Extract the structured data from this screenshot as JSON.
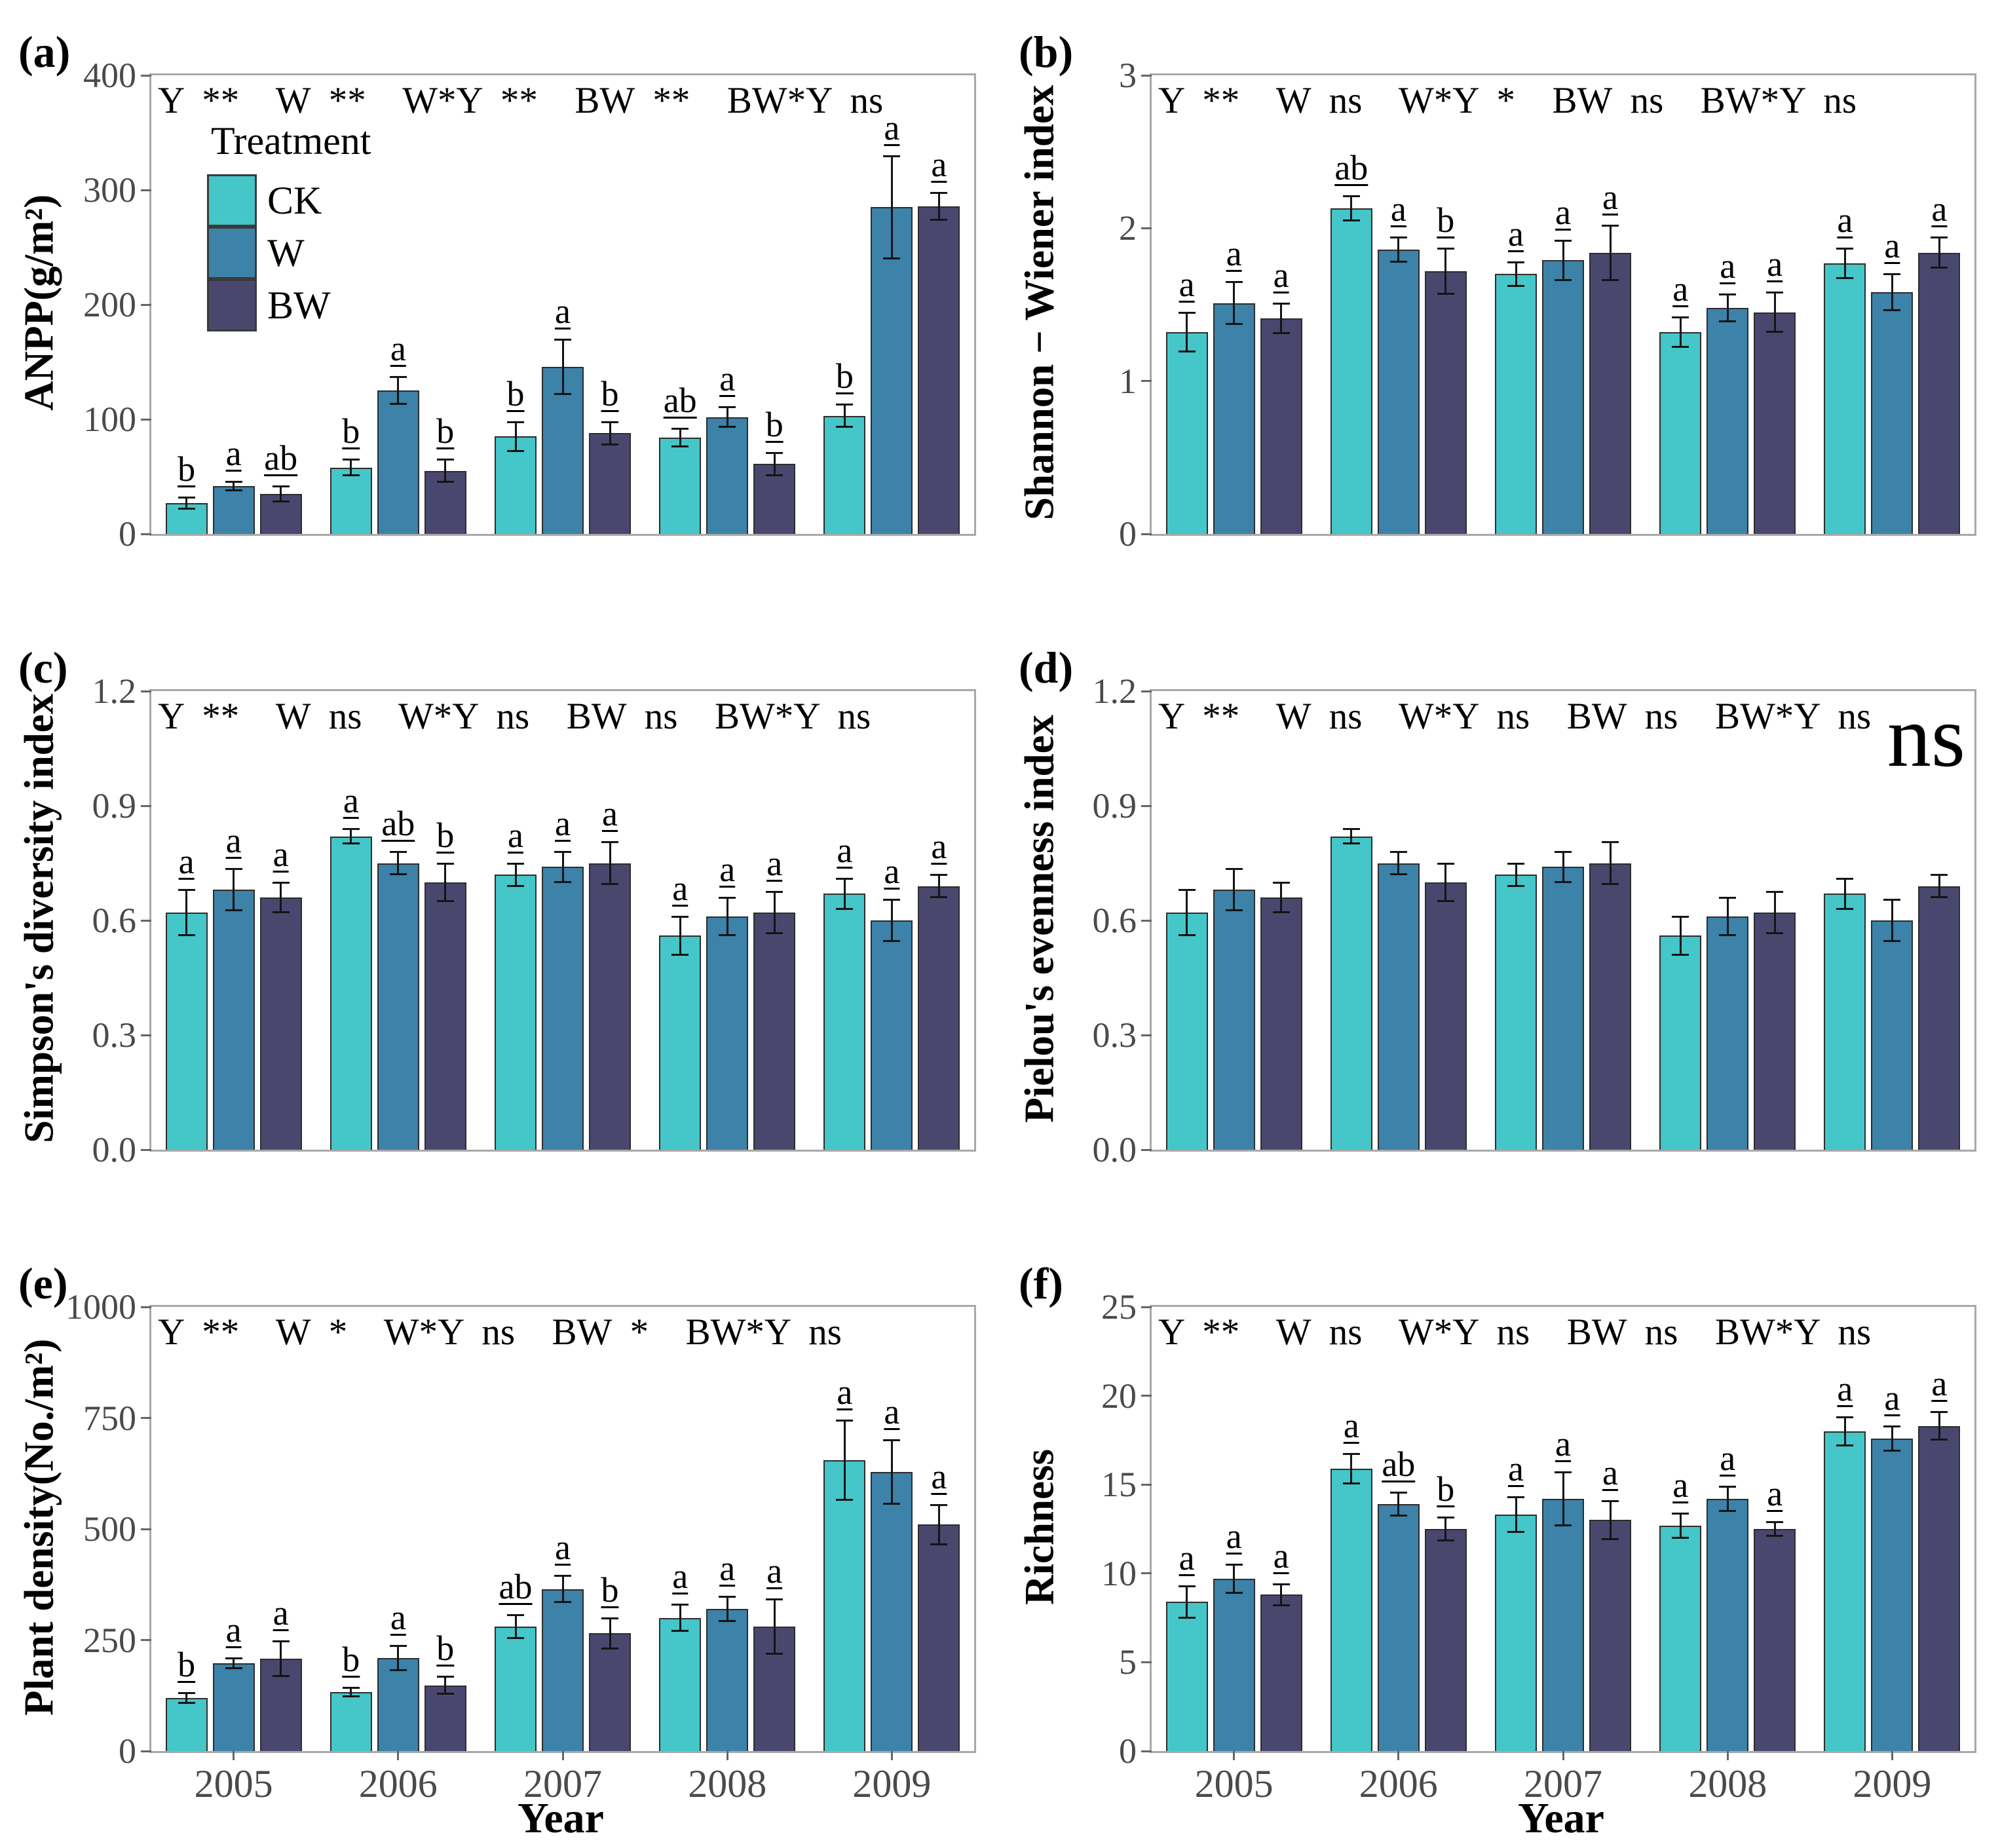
{
  "chart_data": [
    {
      "panel_label": "(a)",
      "type": "bar",
      "ylabel": "ANPP(g/m²)",
      "stats_text": "Y **  W **  W*Y **  BW **  BW*Y ns",
      "categories": [
        "2005",
        "2006",
        "2007",
        "2008",
        "2009"
      ],
      "xlabel": "",
      "show_x_labels": false,
      "ylim": [
        0,
        400
      ],
      "yticks": [
        0,
        100,
        200,
        300,
        400
      ],
      "ytick_labels": [
        "0",
        "100",
        "200",
        "300",
        "400"
      ],
      "series": [
        {
          "name": "CK",
          "color": "#45C6C8",
          "values": [
            27,
            58,
            85,
            84,
            103
          ],
          "errors": [
            5,
            7,
            13,
            8,
            10
          ],
          "letters": [
            "b",
            "b",
            "b",
            "ab",
            "b"
          ]
        },
        {
          "name": "W",
          "color": "#3C82A9",
          "values": [
            42,
            125,
            146,
            102,
            285
          ],
          "errors": [
            4,
            12,
            24,
            9,
            45
          ],
          "letters": [
            "a",
            "a",
            "a",
            "a",
            "a"
          ]
        },
        {
          "name": "BW",
          "color": "#4A476F",
          "values": [
            35,
            55,
            88,
            61,
            286
          ],
          "errors": [
            7,
            10,
            10,
            10,
            12
          ],
          "letters": [
            "ab",
            "b",
            "b",
            "b",
            "a"
          ]
        }
      ],
      "legend": {
        "title": "Treatment"
      },
      "annotation": ""
    },
    {
      "panel_label": "(b)",
      "type": "bar",
      "ylabel": "Shannon − Wiener index",
      "stats_text": "Y **  W ns  W*Y *  BW ns  BW*Y ns",
      "categories": [
        "2005",
        "2006",
        "2007",
        "2008",
        "2009"
      ],
      "xlabel": "",
      "show_x_labels": false,
      "ylim": [
        0,
        3
      ],
      "yticks": [
        0,
        1,
        2,
        3
      ],
      "ytick_labels": [
        "0",
        "1",
        "2",
        "3"
      ],
      "series": [
        {
          "name": "CK",
          "color": "#45C6C8",
          "values": [
            1.32,
            2.13,
            1.7,
            1.32,
            1.77
          ],
          "errors": [
            0.13,
            0.08,
            0.08,
            0.1,
            0.1
          ],
          "letters": [
            "a",
            "ab",
            "a",
            "a",
            "a"
          ]
        },
        {
          "name": "W",
          "color": "#3C82A9",
          "values": [
            1.51,
            1.86,
            1.79,
            1.48,
            1.58
          ],
          "errors": [
            0.14,
            0.08,
            0.13,
            0.09,
            0.12
          ],
          "letters": [
            "a",
            "a",
            "a",
            "a",
            "a"
          ]
        },
        {
          "name": "BW",
          "color": "#4A476F",
          "values": [
            1.41,
            1.72,
            1.84,
            1.45,
            1.84
          ],
          "errors": [
            0.1,
            0.15,
            0.18,
            0.13,
            0.1
          ],
          "letters": [
            "a",
            "b",
            "a",
            "a",
            "a"
          ]
        }
      ],
      "legend": null,
      "annotation": ""
    },
    {
      "panel_label": "(c)",
      "type": "bar",
      "ylabel": "Simpson's diversity index",
      "stats_text": "Y **  W ns  W*Y ns  BW ns  BW*Y ns",
      "categories": [
        "2005",
        "2006",
        "2007",
        "2008",
        "2009"
      ],
      "xlabel": "",
      "show_x_labels": false,
      "ylim": [
        0,
        1.2
      ],
      "yticks": [
        0,
        0.3,
        0.6,
        0.9,
        1.2
      ],
      "ytick_labels": [
        "0.0",
        "0.3",
        "0.6",
        "0.9",
        "1.2"
      ],
      "series": [
        {
          "name": "CK",
          "color": "#45C6C8",
          "values": [
            0.62,
            0.82,
            0.72,
            0.56,
            0.67
          ],
          "errors": [
            0.06,
            0.02,
            0.03,
            0.05,
            0.04
          ],
          "letters": [
            "a",
            "a",
            "a",
            "a",
            "a"
          ]
        },
        {
          "name": "W",
          "color": "#3C82A9",
          "values": [
            0.68,
            0.75,
            0.74,
            0.61,
            0.6
          ],
          "errors": [
            0.055,
            0.03,
            0.04,
            0.05,
            0.055
          ],
          "letters": [
            "a",
            "ab",
            "a",
            "a",
            "a"
          ]
        },
        {
          "name": "BW",
          "color": "#4A476F",
          "values": [
            0.66,
            0.7,
            0.75,
            0.62,
            0.69
          ],
          "errors": [
            0.04,
            0.05,
            0.055,
            0.055,
            0.03
          ],
          "letters": [
            "a",
            "b",
            "a",
            "a",
            "a"
          ]
        }
      ],
      "legend": null,
      "annotation": ""
    },
    {
      "panel_label": "(d)",
      "type": "bar",
      "ylabel": "Pielou's evenness index",
      "stats_text": "Y **  W ns  W*Y ns  BW ns  BW*Y ns",
      "categories": [
        "2005",
        "2006",
        "2007",
        "2008",
        "2009"
      ],
      "xlabel": "",
      "show_x_labels": false,
      "ylim": [
        0,
        1.2
      ],
      "yticks": [
        0,
        0.3,
        0.6,
        0.9,
        1.2
      ],
      "ytick_labels": [
        "0.0",
        "0.3",
        "0.6",
        "0.9",
        "1.2"
      ],
      "series": [
        {
          "name": "CK",
          "color": "#45C6C8",
          "values": [
            0.62,
            0.82,
            0.72,
            0.56,
            0.67
          ],
          "errors": [
            0.06,
            0.02,
            0.03,
            0.05,
            0.04
          ],
          "letters": null
        },
        {
          "name": "W",
          "color": "#3C82A9",
          "values": [
            0.68,
            0.75,
            0.74,
            0.61,
            0.6
          ],
          "errors": [
            0.055,
            0.03,
            0.04,
            0.05,
            0.055
          ],
          "letters": null
        },
        {
          "name": "BW",
          "color": "#4A476F",
          "values": [
            0.66,
            0.7,
            0.75,
            0.62,
            0.69
          ],
          "errors": [
            0.04,
            0.05,
            0.055,
            0.055,
            0.03
          ],
          "letters": null
        }
      ],
      "legend": null,
      "annotation": "ns"
    },
    {
      "panel_label": "(e)",
      "type": "bar",
      "ylabel": "Plant density(No./m²)",
      "stats_text": "Y **  W *  W*Y ns  BW *  BW*Y ns",
      "categories": [
        "2005",
        "2006",
        "2007",
        "2008",
        "2009"
      ],
      "xlabel": "Year",
      "show_x_labels": true,
      "ylim": [
        0,
        1000
      ],
      "yticks": [
        0,
        250,
        500,
        750,
        1000
      ],
      "ytick_labels": [
        "0",
        "250",
        "500",
        "750",
        "1000"
      ],
      "series": [
        {
          "name": "CK",
          "color": "#45C6C8",
          "values": [
            120,
            133,
            280,
            300,
            655
          ],
          "errors": [
            12,
            10,
            27,
            30,
            90
          ],
          "letters": [
            "b",
            "b",
            "ab",
            "a",
            "a"
          ]
        },
        {
          "name": "W",
          "color": "#3C82A9",
          "values": [
            198,
            210,
            365,
            320,
            628
          ],
          "errors": [
            12,
            28,
            30,
            28,
            72
          ],
          "letters": [
            "a",
            "a",
            "a",
            "a",
            "a"
          ]
        },
        {
          "name": "BW",
          "color": "#4A476F",
          "values": [
            208,
            148,
            265,
            280,
            510
          ],
          "errors": [
            40,
            20,
            35,
            62,
            45
          ],
          "letters": [
            "a",
            "b",
            "b",
            "a",
            "a"
          ]
        }
      ],
      "legend": null,
      "annotation": ""
    },
    {
      "panel_label": "(f)",
      "type": "bar",
      "ylabel": "Richness",
      "stats_text": "Y **  W ns  W*Y ns  BW ns  BW*Y ns",
      "categories": [
        "2005",
        "2006",
        "2007",
        "2008",
        "2009"
      ],
      "xlabel": "Year",
      "show_x_labels": true,
      "ylim": [
        0,
        25
      ],
      "yticks": [
        0,
        5,
        10,
        15,
        20,
        25
      ],
      "ytick_labels": [
        "0",
        "5",
        "10",
        "15",
        "20",
        "25"
      ],
      "series": [
        {
          "name": "CK",
          "color": "#45C6C8",
          "values": [
            8.4,
            15.9,
            13.3,
            12.7,
            18.0
          ],
          "errors": [
            0.9,
            0.85,
            1.0,
            0.7,
            0.8
          ],
          "letters": [
            "a",
            "a",
            "a",
            "a",
            "a"
          ]
        },
        {
          "name": "W",
          "color": "#3C82A9",
          "values": [
            9.7,
            13.9,
            14.2,
            14.2,
            17.6
          ],
          "errors": [
            0.8,
            0.65,
            1.5,
            0.7,
            0.7
          ],
          "letters": [
            "a",
            "ab",
            "a",
            "a",
            "a"
          ]
        },
        {
          "name": "BW",
          "color": "#4A476F",
          "values": [
            8.8,
            12.5,
            13.0,
            12.5,
            18.3
          ],
          "errors": [
            0.6,
            0.65,
            1.1,
            0.4,
            0.8
          ],
          "letters": [
            "a",
            "b",
            "a",
            "a",
            "a"
          ]
        }
      ],
      "legend": null,
      "annotation": ""
    }
  ]
}
